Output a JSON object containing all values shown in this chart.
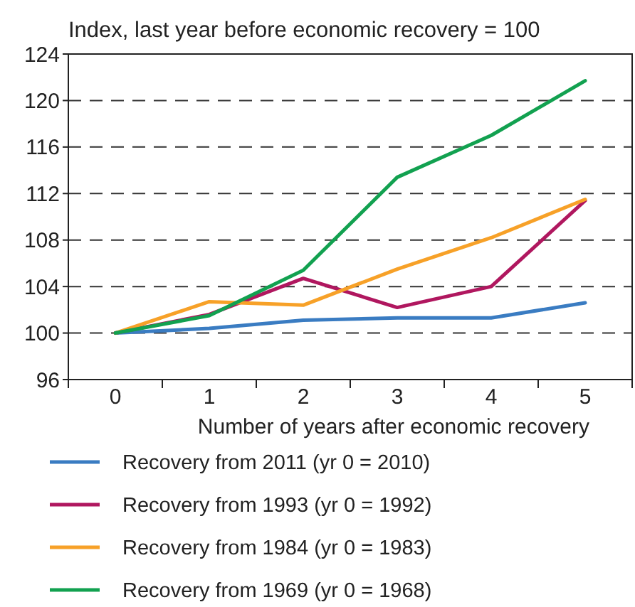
{
  "chart_data": {
    "type": "line",
    "title": "Index, last year before economic recovery = 100",
    "xlabel": "Number of years after economic recovery",
    "categories": [
      "0",
      "1",
      "2",
      "3",
      "4",
      "5"
    ],
    "series": [
      {
        "name": "Recovery from 2011 (yr 0 = 2010)",
        "color": "#3a7cc2",
        "values": [
          100,
          100.4,
          101.1,
          101.3,
          101.3,
          102.6
        ]
      },
      {
        "name": "Recovery from 1993 (yr 0 = 1992)",
        "color": "#b0175f",
        "values": [
          100,
          101.6,
          104.7,
          102.2,
          104.0,
          111.4
        ]
      },
      {
        "name": "Recovery from 1984 (yr 0 = 1983)",
        "color": "#f7a128",
        "values": [
          100,
          102.7,
          102.4,
          105.5,
          108.2,
          111.5
        ]
      },
      {
        "name": "Recovery from 1969 (yr 0 = 1968)",
        "color": "#12a150",
        "values": [
          100,
          101.5,
          105.4,
          113.4,
          117.0,
          121.7
        ]
      }
    ],
    "ylim": [
      96,
      124
    ],
    "yticks": [
      96,
      100,
      104,
      108,
      112,
      116,
      120,
      124
    ],
    "grid": "y",
    "legend": "bottom",
    "marker": "none",
    "line_style": "solid"
  }
}
